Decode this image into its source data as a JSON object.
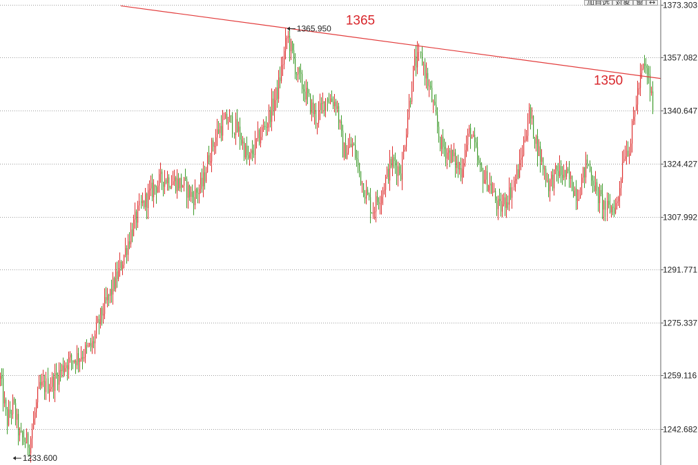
{
  "toolbar": {
    "buttons": [
      "加自选",
      "对象",
      "窗",
      "↔"
    ]
  },
  "colors": {
    "up": "#dd2b2b",
    "down": "#3c9a2a",
    "trendline": "#e23b3b",
    "grid": "#9c9c9c",
    "axis_text": "#222222",
    "annotation": "#d8262b"
  },
  "chart_data": {
    "type": "candlestick",
    "title": "",
    "xlabel": "",
    "ylabel": "",
    "ylim": [
      1226.0,
      1373.303
    ],
    "y_ticks": [
      "1373.303",
      "1357.082",
      "1340.647",
      "1324.427",
      "1307.992",
      "1291.771",
      "1275.337",
      "1259.116",
      "1242.682"
    ],
    "grid": "horizontal-dotted",
    "markers": [
      {
        "label": "1365.950",
        "index_fraction": 0.44,
        "value": 1365.95
      },
      {
        "label": "1233.600",
        "index_fraction": 0.02,
        "value": 1233.6
      }
    ],
    "annotations": [
      {
        "text": "1365",
        "near_value": 1368.5,
        "index_fraction": 0.53
      },
      {
        "text": "1350",
        "near_value": 1350.0,
        "index_fraction": 0.91
      }
    ],
    "trendline": {
      "start_value": 1373.0,
      "end_value": 1350.6,
      "start_fraction": 0.185,
      "end_fraction": 1.0
    },
    "path_keypoints": [
      [
        0.0,
        1258
      ],
      [
        0.01,
        1245
      ],
      [
        0.02,
        1250
      ],
      [
        0.03,
        1240
      ],
      [
        0.045,
        1238
      ],
      [
        0.06,
        1255
      ],
      [
        0.08,
        1257
      ],
      [
        0.1,
        1263
      ],
      [
        0.12,
        1265
      ],
      [
        0.14,
        1268
      ],
      [
        0.155,
        1278
      ],
      [
        0.17,
        1285
      ],
      [
        0.185,
        1293
      ],
      [
        0.2,
        1303
      ],
      [
        0.215,
        1311
      ],
      [
        0.235,
        1317
      ],
      [
        0.25,
        1320
      ],
      [
        0.265,
        1319
      ],
      [
        0.28,
        1318
      ],
      [
        0.295,
        1314
      ],
      [
        0.31,
        1318
      ],
      [
        0.32,
        1327
      ],
      [
        0.335,
        1335
      ],
      [
        0.35,
        1338
      ],
      [
        0.365,
        1334
      ],
      [
        0.38,
        1325
      ],
      [
        0.395,
        1332
      ],
      [
        0.41,
        1338
      ],
      [
        0.425,
        1347
      ],
      [
        0.44,
        1364
      ],
      [
        0.455,
        1352
      ],
      [
        0.47,
        1345
      ],
      [
        0.485,
        1338
      ],
      [
        0.5,
        1345
      ],
      [
        0.515,
        1343
      ],
      [
        0.525,
        1328
      ],
      [
        0.54,
        1330
      ],
      [
        0.555,
        1318
      ],
      [
        0.57,
        1310
      ],
      [
        0.585,
        1316
      ],
      [
        0.6,
        1325
      ],
      [
        0.615,
        1322
      ],
      [
        0.625,
        1340
      ],
      [
        0.635,
        1355
      ],
      [
        0.645,
        1357
      ],
      [
        0.66,
        1345
      ],
      [
        0.675,
        1330
      ],
      [
        0.69,
        1327
      ],
      [
        0.705,
        1322
      ],
      [
        0.72,
        1335
      ],
      [
        0.735,
        1322
      ],
      [
        0.75,
        1318
      ],
      [
        0.765,
        1310
      ],
      [
        0.78,
        1315
      ],
      [
        0.795,
        1323
      ],
      [
        0.81,
        1340
      ],
      [
        0.825,
        1328
      ],
      [
        0.84,
        1318
      ],
      [
        0.855,
        1322
      ],
      [
        0.87,
        1320
      ],
      [
        0.885,
        1315
      ],
      [
        0.9,
        1325
      ],
      [
        0.915,
        1315
      ],
      [
        0.93,
        1310
      ],
      [
        0.945,
        1312
      ],
      [
        0.955,
        1328
      ],
      [
        0.965,
        1330
      ],
      [
        0.975,
        1345
      ],
      [
        0.985,
        1354
      ],
      [
        0.992,
        1352
      ],
      [
        1.0,
        1342
      ]
    ]
  }
}
